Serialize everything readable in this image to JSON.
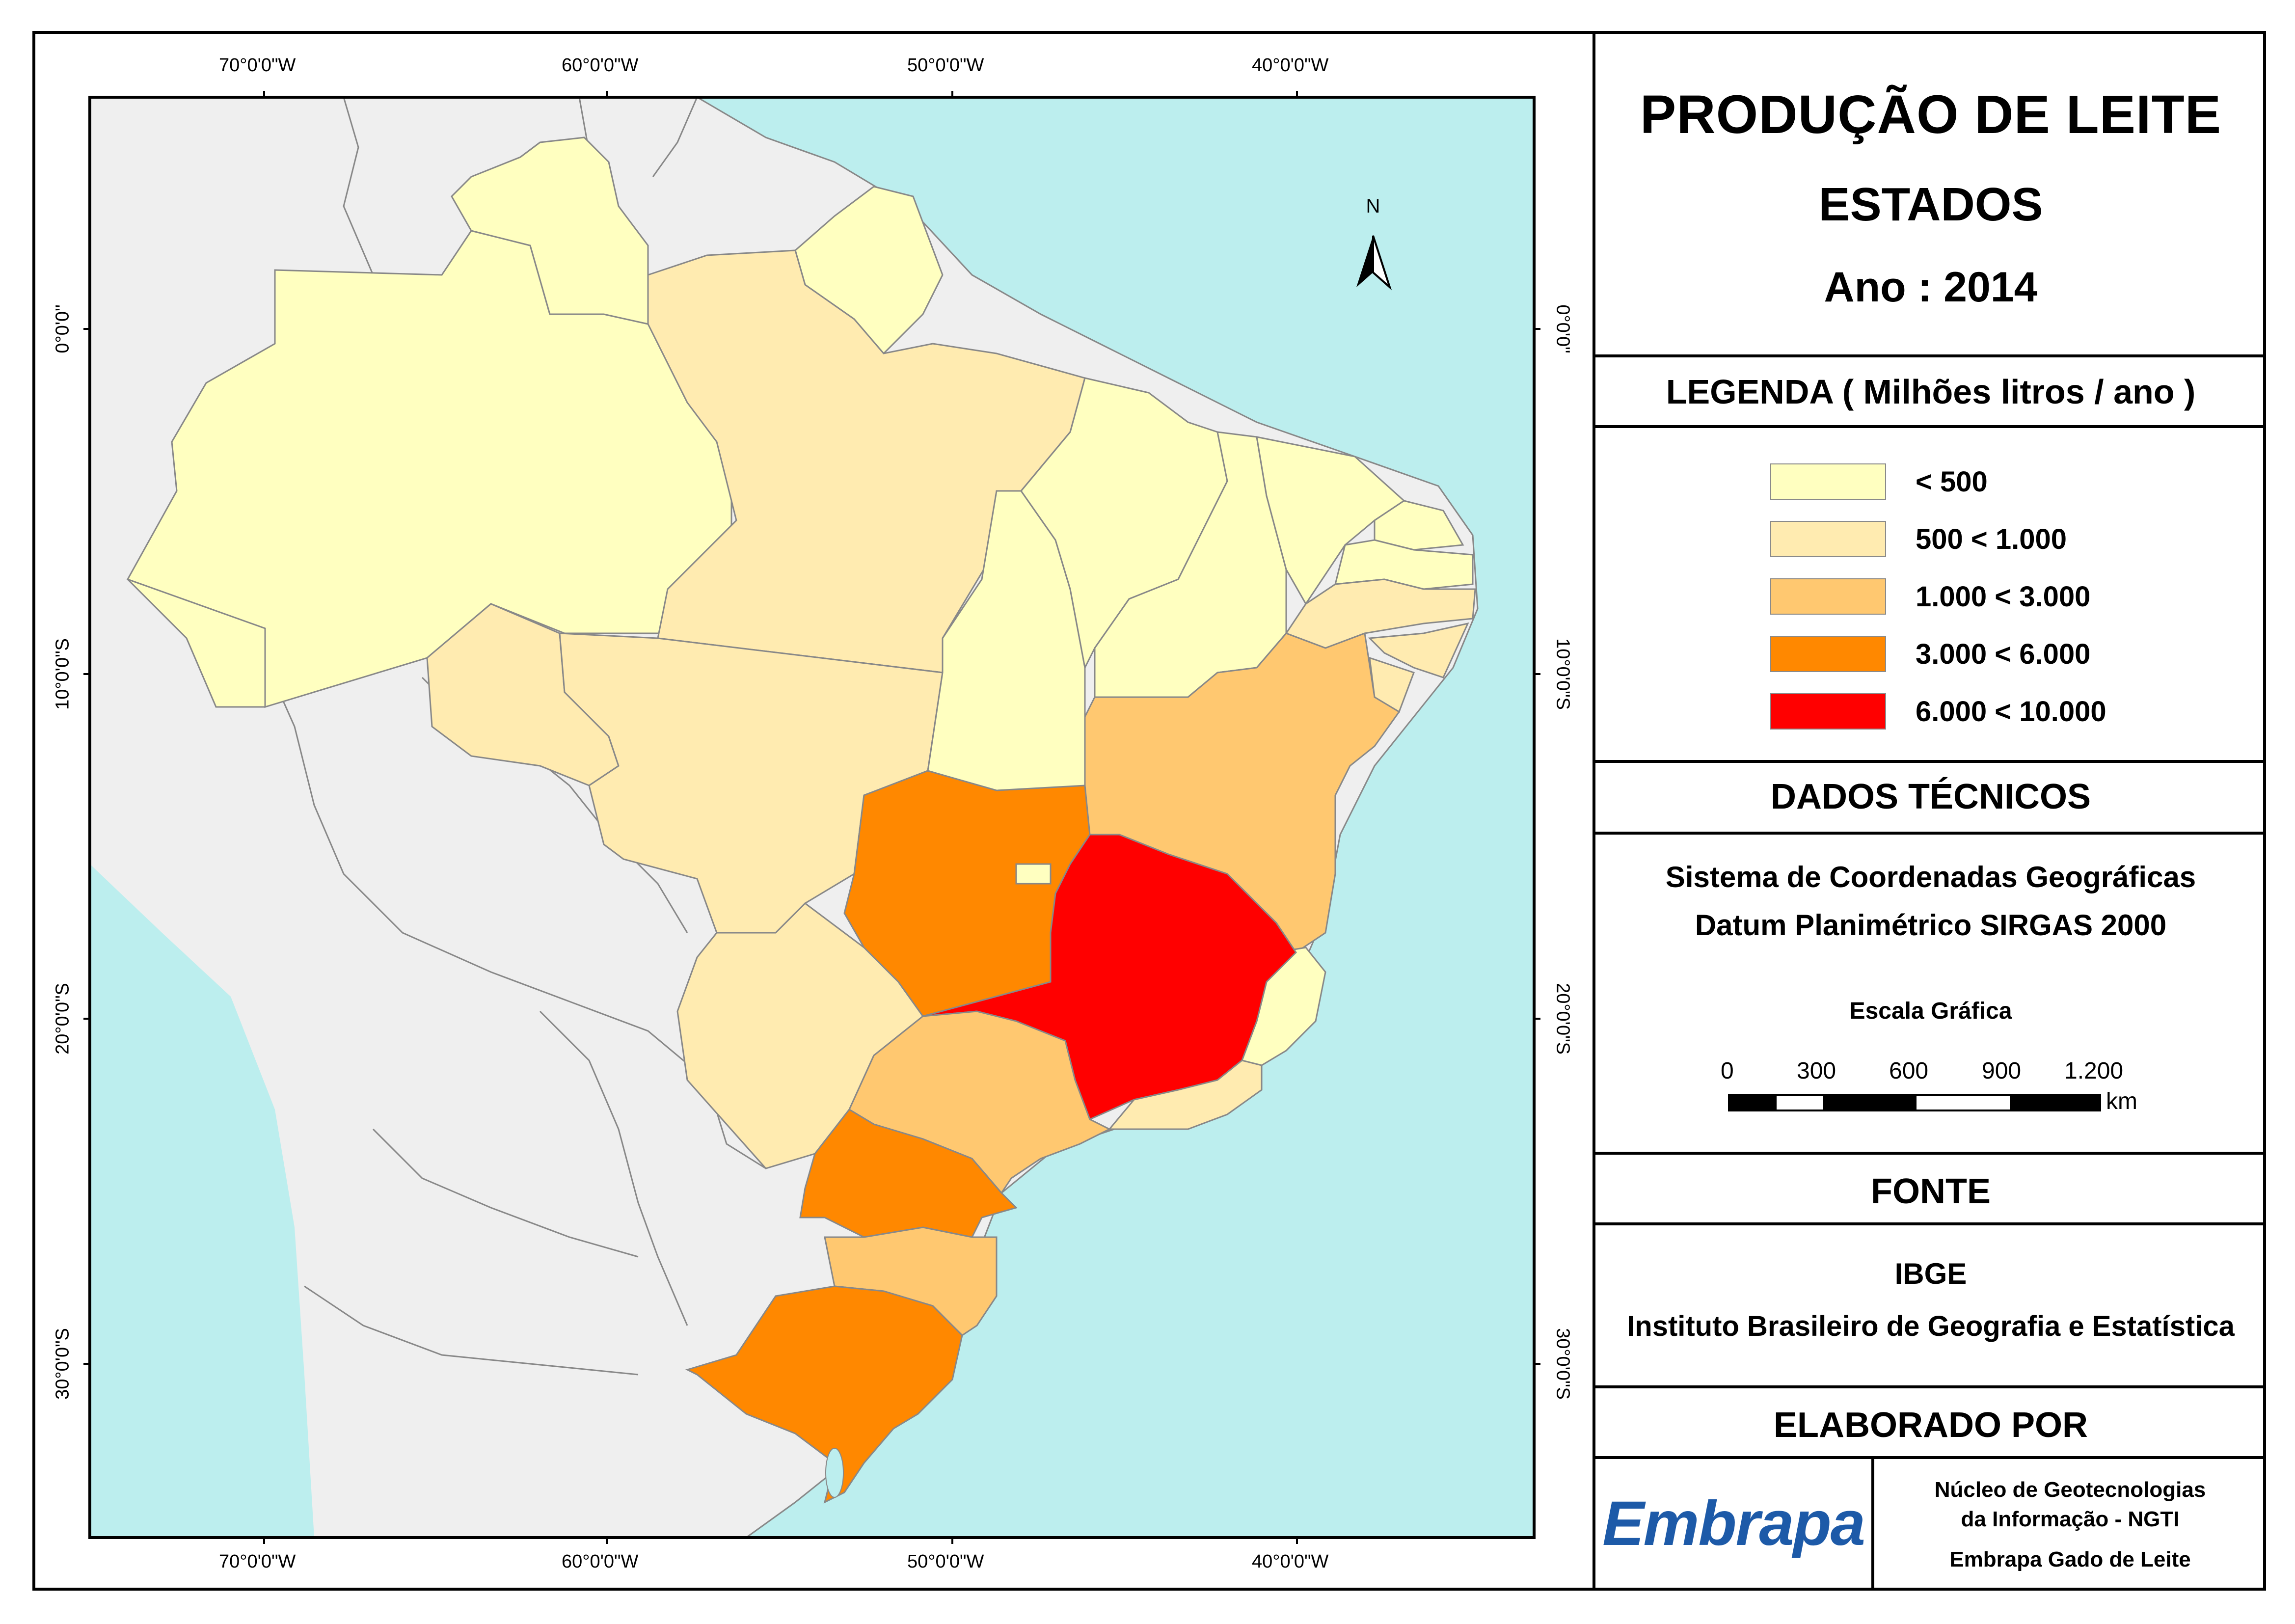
{
  "title": {
    "main": "PRODUÇÃO DE LEITE",
    "sub": "ESTADOS",
    "year": "Ano : 2014"
  },
  "legend": {
    "heading": "LEGENDA ( Milhões litros / ano )",
    "classes": [
      {
        "label": "< 500",
        "color": "#FFFFC0"
      },
      {
        "label": "500 < 1.000",
        "color": "#FFEBB0"
      },
      {
        "label": "1.000 < 3.000",
        "color": "#FFC870"
      },
      {
        "label": "3.000 < 6.000",
        "color": "#FF8800"
      },
      {
        "label": "6.000 < 10.000",
        "color": "#FF0000"
      }
    ]
  },
  "technical": {
    "heading": "DADOS TÉCNICOS",
    "line1": "Sistema de Coordenadas Geográficas",
    "line2": "Datum Planimétrico SIRGAS 2000",
    "scale_title": "Escala Gráfica",
    "scale_ticks": [
      "0",
      "300",
      "600",
      "900",
      "1.200"
    ],
    "scale_unit": "km"
  },
  "source": {
    "heading": "FONTE",
    "line1": "IBGE",
    "line2": "Instituto Brasileiro de Geografia e Estatística"
  },
  "credits": {
    "heading": "ELABORADO POR",
    "logo_text": "Embrapa",
    "line1": "Núcleo de Geotecnologias",
    "line2": "da Informação - NGTI",
    "line3": "Embrapa Gado de Leite"
  },
  "map": {
    "north_label": "N",
    "lon_labels": [
      "70°0'0\"W",
      "60°0'0\"W",
      "50°0'0\"W",
      "40°0'0\"W"
    ],
    "lat_labels": [
      "0°0'0\"",
      "10°0'0\"S",
      "20°0'0\"S",
      "30°0'0\"S"
    ],
    "colors": {
      "ocean": "#BCEEEE",
      "land": "#EFEFEF"
    }
  }
}
